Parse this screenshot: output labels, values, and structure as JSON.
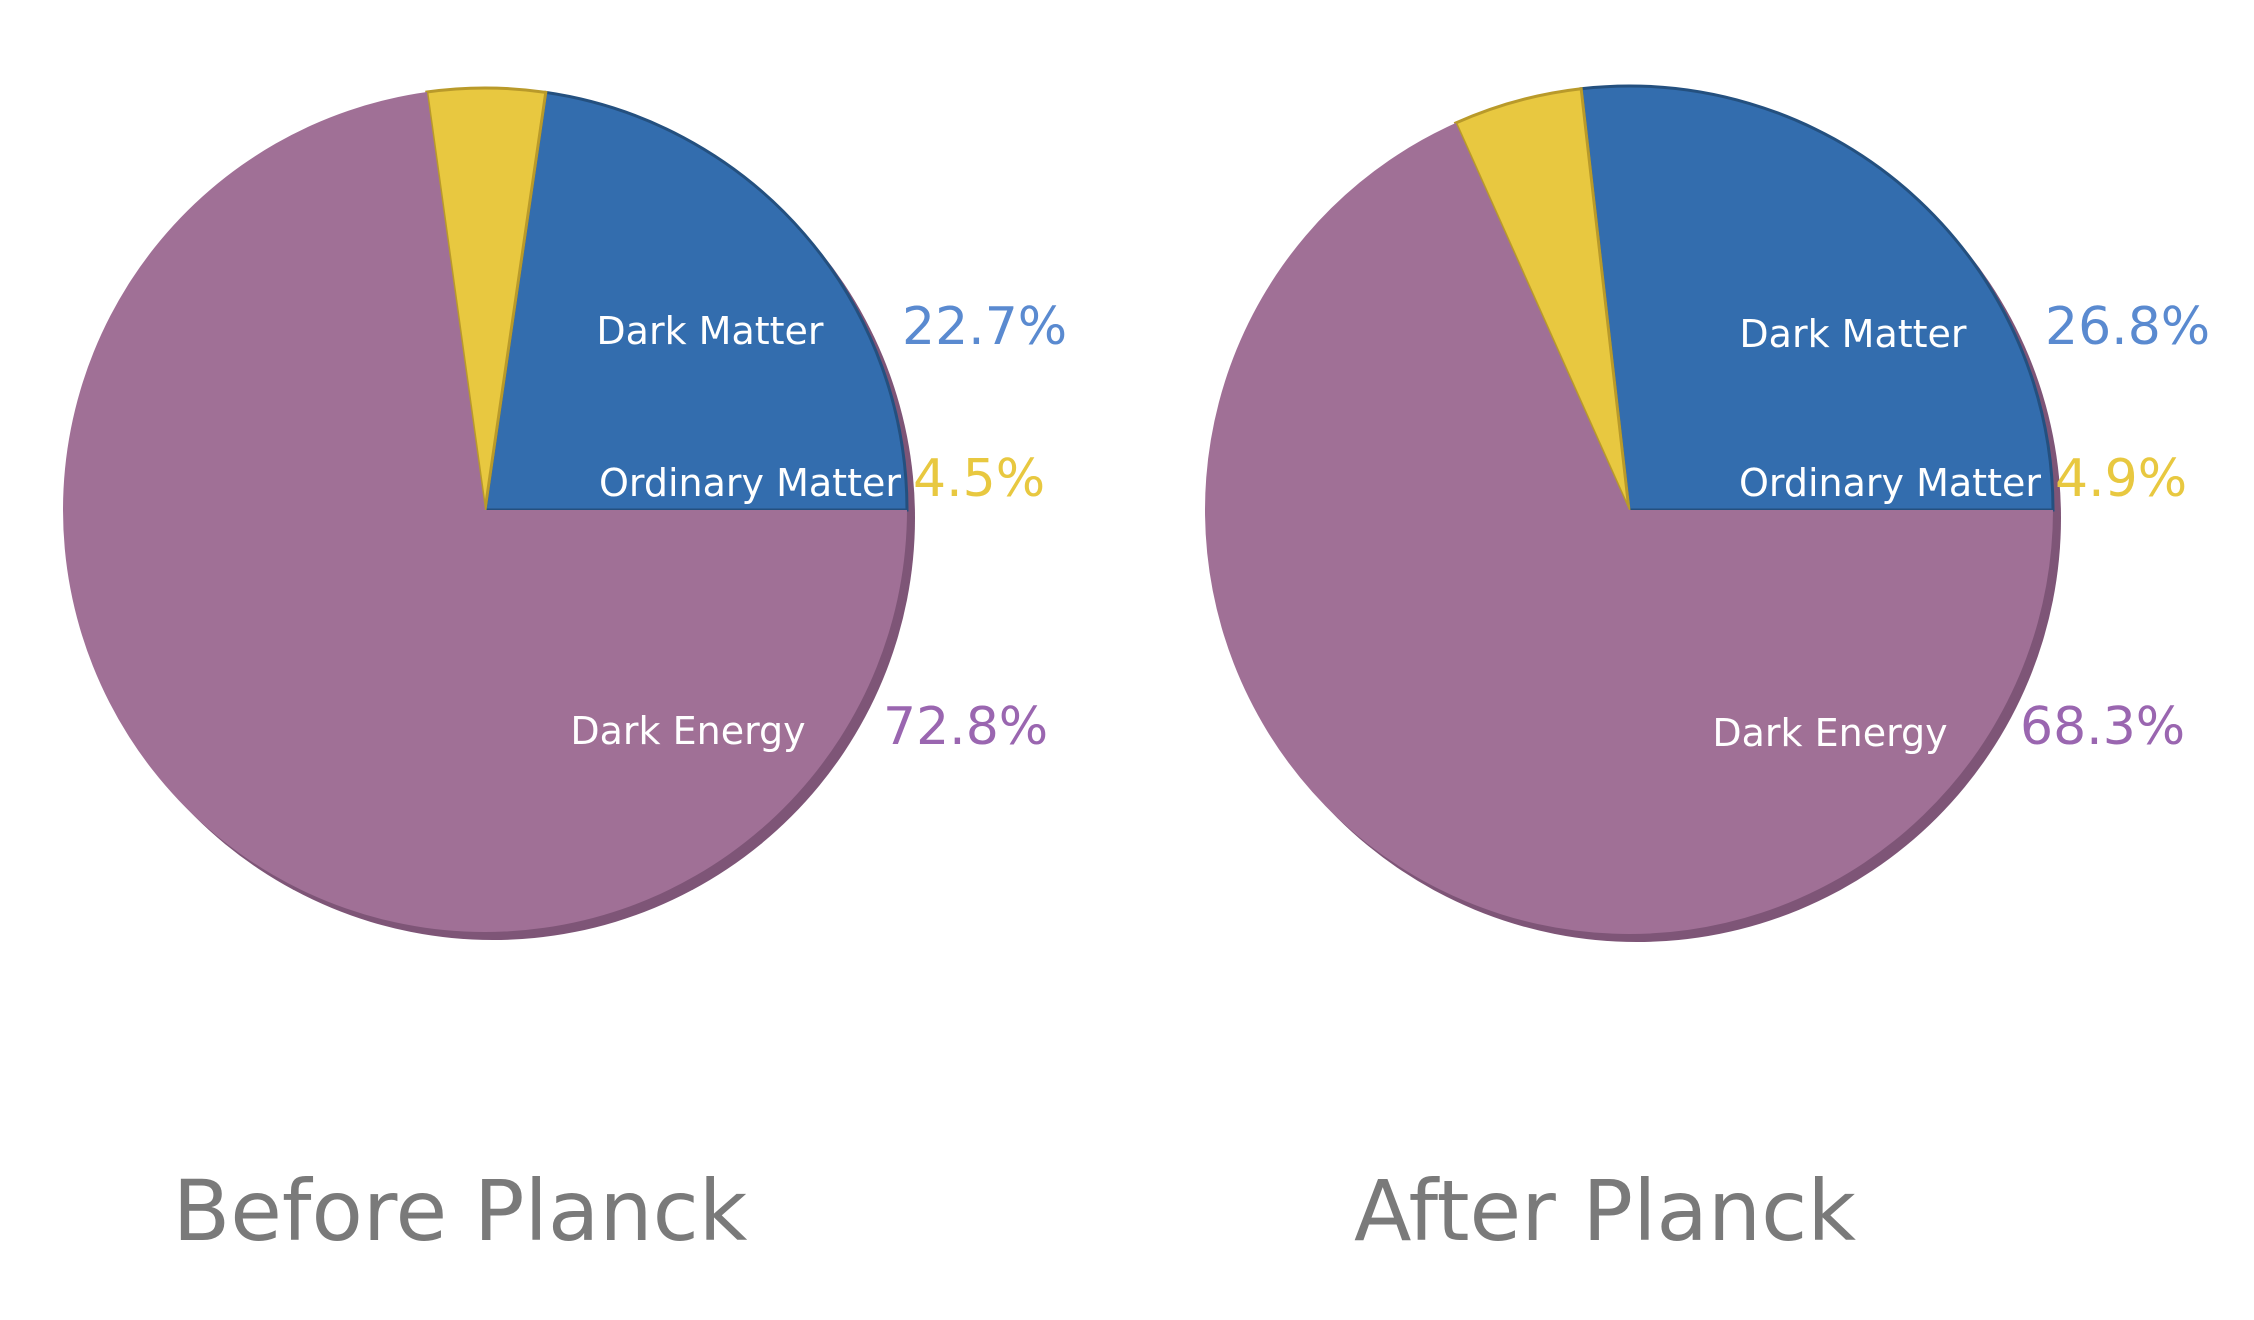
{
  "chart_data": [
    {
      "type": "pie",
      "title": "Before Planck",
      "categories": [
        "Dark Matter",
        "Ordinary Matter",
        "Dark Energy"
      ],
      "values": [
        22.7,
        4.5,
        72.8
      ],
      "value_labels": [
        "22.7%",
        "4.5%",
        "72.8%"
      ],
      "colors": [
        "#336dae",
        "#e8c840",
        "#a07096"
      ]
    },
    {
      "type": "pie",
      "title": "After Planck",
      "categories": [
        "Dark Matter",
        "Ordinary Matter",
        "Dark Energy"
      ],
      "values": [
        26.8,
        4.9,
        68.3
      ],
      "value_labels": [
        "26.8%",
        "4.9%",
        "68.3%"
      ],
      "colors": [
        "#336dae",
        "#e8c840",
        "#a07096"
      ]
    }
  ],
  "value_label_colors": [
    "#5a8ad0",
    "#e8c840",
    "#9a66b0"
  ]
}
